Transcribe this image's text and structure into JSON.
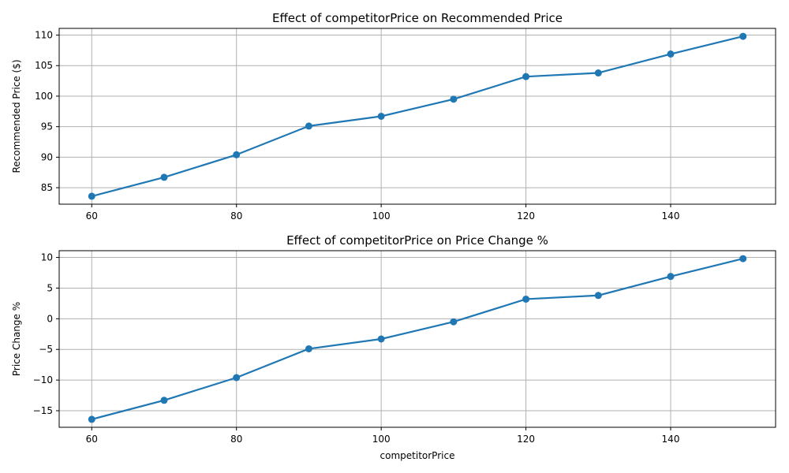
{
  "figure": {
    "background": "#ffffff",
    "series_color": "#1f77b4",
    "grid_color": "#b0b0b0"
  },
  "chart_data": [
    {
      "type": "line",
      "title": "Effect of competitorPrice on Recommended Price",
      "xlabel": "",
      "ylabel": "Recommended Price ($)",
      "x": [
        60,
        70,
        80,
        90,
        100,
        110,
        120,
        130,
        140,
        150
      ],
      "series": [
        {
          "values": [
            83.6,
            86.7,
            90.4,
            95.1,
            96.7,
            99.5,
            103.2,
            103.8,
            106.9,
            109.8
          ]
        }
      ],
      "xlim": [
        55.5,
        154.5
      ],
      "ylim": [
        82.3,
        111.1
      ],
      "xticks": [
        60,
        80,
        100,
        120,
        140
      ],
      "yticks": [
        85,
        90,
        95,
        100,
        105,
        110
      ],
      "grid": true,
      "marker": "circle"
    },
    {
      "type": "line",
      "title": "Effect of competitorPrice on Price Change %",
      "xlabel": "competitorPrice",
      "ylabel": "Price Change %",
      "x": [
        60,
        70,
        80,
        90,
        100,
        110,
        120,
        130,
        140,
        150
      ],
      "series": [
        {
          "values": [
            -16.4,
            -13.3,
            -9.6,
            -4.9,
            -3.3,
            -0.5,
            3.2,
            3.8,
            6.9,
            9.8
          ]
        }
      ],
      "xlim": [
        55.5,
        154.5
      ],
      "ylim": [
        -17.7,
        11.1
      ],
      "xticks": [
        60,
        80,
        100,
        120,
        140
      ],
      "yticks": [
        -15,
        -10,
        -5,
        0,
        5,
        10
      ],
      "grid": true,
      "marker": "circle"
    }
  ]
}
